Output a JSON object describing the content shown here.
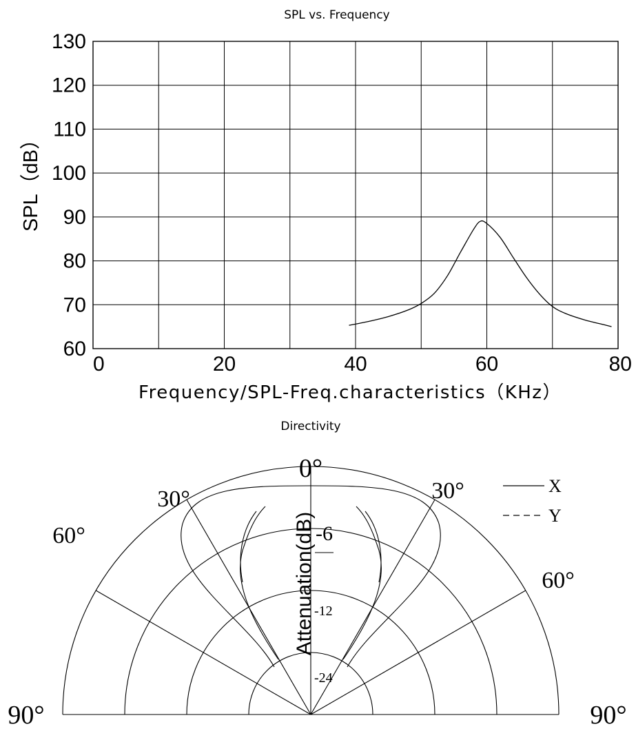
{
  "chart_data": [
    {
      "type": "line",
      "title": "SPL vs. Frequency",
      "xlabel": "Frequency/SPL-Freq.characteristics（KHz）",
      "ylabel": "SPL（dB）",
      "xlim": [
        0,
        80
      ],
      "ylim": [
        60,
        130
      ],
      "xticks": [
        "0",
        "20",
        "40",
        "60",
        "80"
      ],
      "yticks": [
        "60",
        "70",
        "80",
        "90",
        "100",
        "110",
        "120",
        "130"
      ],
      "grid": true,
      "series": [
        {
          "x": [
            39,
            42,
            45,
            48,
            50,
            52,
            54,
            56,
            58,
            59,
            60,
            62,
            64,
            66,
            68,
            70,
            72,
            75,
            78,
            79
          ],
          "y": [
            65.3,
            66.2,
            67.3,
            68.8,
            70.3,
            72.6,
            76.6,
            82.0,
            87.2,
            89.0,
            88.5,
            85.4,
            80.8,
            76.3,
            72.5,
            69.6,
            68.0,
            66.5,
            65.4,
            65.0
          ]
        }
      ]
    },
    {
      "type": "polar",
      "title": "Directivity",
      "radial_label": "Attenuation(dB)",
      "angle_labels": [
        "0°",
        "30°",
        "30°",
        "60°",
        "60°",
        "90°",
        "90°"
      ],
      "ring_labels": [
        "-6",
        "-12",
        "-24"
      ],
      "legend": [
        {
          "name": "X",
          "style": "solid"
        },
        {
          "name": "Y",
          "style": "dashed"
        }
      ]
    }
  ]
}
